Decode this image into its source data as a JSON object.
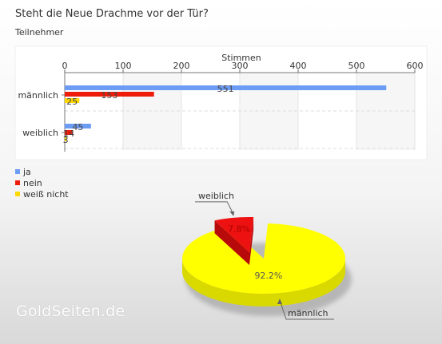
{
  "header": {
    "title": "Steht die Neue Drachme vor der Tür?",
    "subtitle": "Teilnehmer"
  },
  "watermark": "GoldSeiten.de",
  "colors": {
    "ja": "#6d9cf5",
    "nein": "#ee1c0a",
    "weiss_nicht": "#ffd800",
    "pie_yellow": "#ffff00",
    "pie_red": "#ee1111"
  },
  "chart_data": [
    {
      "type": "bar",
      "orientation": "horizontal",
      "xlabel": "Stimmen",
      "xlim": [
        0,
        600
      ],
      "xticks": [
        0,
        100,
        200,
        300,
        400,
        500,
        600
      ],
      "categories": [
        "männlich",
        "weiblich"
      ],
      "series": [
        {
          "name": "ja",
          "values": [
            551,
            45
          ]
        },
        {
          "name": "nein",
          "values": [
            153,
            14
          ]
        },
        {
          "name": "weiß nicht",
          "values": [
            25,
            3
          ]
        }
      ],
      "legend_position": "bottom-left",
      "grid": true
    },
    {
      "type": "pie",
      "categories": [
        "weiblich",
        "männlich"
      ],
      "values": [
        7.8,
        92.2
      ],
      "value_labels": [
        "7.8%",
        "92.2%"
      ]
    }
  ]
}
